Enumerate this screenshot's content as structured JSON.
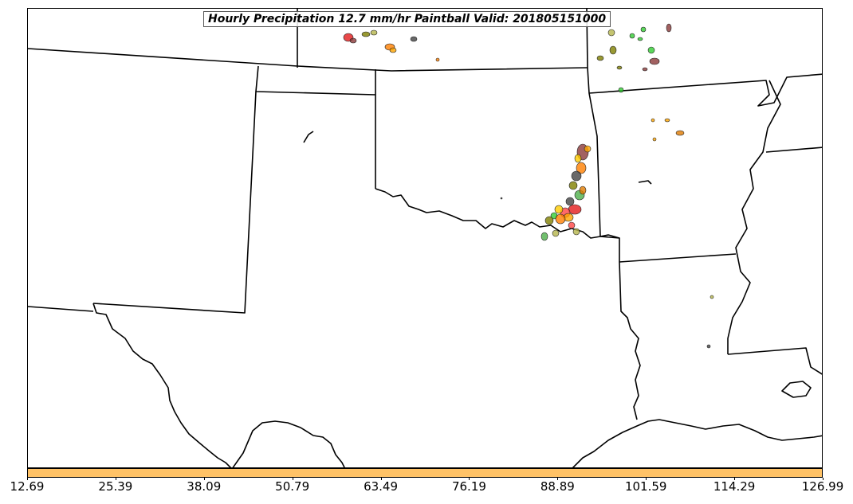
{
  "map": {
    "title": "Hourly Precipitation 12.7 mm/hr Paintball Valid: 201805151000",
    "colorbar_color": "#FFC266",
    "colorbar_ticks": [
      "12.69",
      "25.39",
      "38.09",
      "50.79",
      "63.49",
      "76.19",
      "88.89",
      "101.59",
      "114.29",
      "126.99"
    ],
    "paintball_colors": [
      "#E41A1C",
      "#FF7F00",
      "#4DAF4A",
      "#808000",
      "#FFA500",
      "#8B3A3A",
      "#FF4444",
      "#FFCC00",
      "#444444",
      "#32CD32",
      "#B5B54C",
      "#E07B00"
    ],
    "boundary_color": "#000000"
  }
}
